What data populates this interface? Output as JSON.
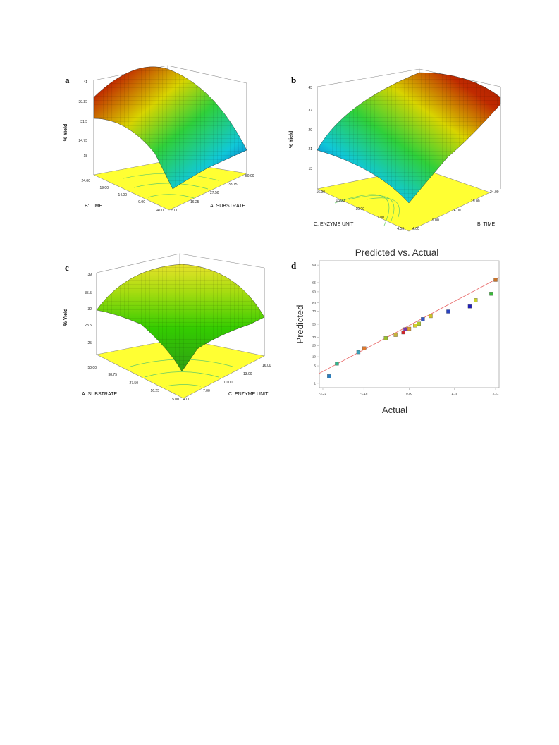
{
  "chart_data": [
    {
      "panel": "a",
      "type": "surface",
      "zlabel": "% Yield",
      "z_ticks": [
        "41",
        "38.25",
        "31.5",
        "24.75",
        "18"
      ],
      "xlabel": "A: SUBSTRATE",
      "x_ticks": [
        "5.00",
        "16.25",
        "27.50",
        "38.75",
        "50.00"
      ],
      "ylabel": "B: TIME",
      "y_ticks": [
        "4.00",
        "9.00",
        "14.00",
        "19.00",
        "24.00"
      ],
      "colors": {
        "high": "#b22a00",
        "mid": "#7ccd00",
        "low": "#0a3cc8",
        "floor": "#ffff33"
      }
    },
    {
      "panel": "b",
      "type": "surface",
      "zlabel": "% Yield",
      "z_ticks": [
        "45",
        "37",
        "29",
        "21",
        "13"
      ],
      "xlabel": "B: TIME",
      "x_ticks": [
        "4.00",
        "9.00",
        "14.00",
        "19.00",
        "24.00"
      ],
      "ylabel": "C: ENZYME UNIT",
      "y_ticks": [
        "4.00",
        "7.00",
        "10.00",
        "13.00",
        "16.00"
      ],
      "colors": {
        "high": "#a51c00",
        "mid": "#7ccd00",
        "low": "#0010c8",
        "floor": "#ffff33"
      }
    },
    {
      "panel": "c",
      "type": "surface",
      "zlabel": "% Yield",
      "z_ticks": [
        "39",
        "35.5",
        "32",
        "28.5",
        "25"
      ],
      "xlabel": "C: ENZYME UNIT",
      "x_ticks": [
        "4.00",
        "7.00",
        "10.00",
        "13.00",
        "16.00"
      ],
      "ylabel": "A: SUBSTRATE",
      "y_ticks": [
        "5.00",
        "16.25",
        "27.50",
        "38.75",
        "50.00"
      ],
      "colors": {
        "high": "#e8e22a",
        "mid": "#33cc00",
        "low": "#2f9f14",
        "floor": "#ffff33"
      }
    },
    {
      "panel": "d",
      "type": "scatter",
      "title": "Predicted vs. Actual",
      "xlabel": "Actual",
      "ylabel": "Predicted",
      "x_ticks": [
        "-2.21",
        "-1.16",
        "0.00",
        "1.16",
        "2.21"
      ],
      "y_ticks": [
        "1",
        "5",
        "10",
        "20",
        "30",
        "50",
        "70",
        "80",
        "90",
        "95",
        "99"
      ],
      "xlim": [
        -2.3,
        2.3
      ],
      "ylim": [
        -2.5,
        2.5
      ],
      "points": [
        {
          "x": -2.05,
          "y": -2.05,
          "color": "#2a7fc0"
        },
        {
          "x": -1.85,
          "y": -1.55,
          "color": "#2fb58c"
        },
        {
          "x": -1.3,
          "y": -1.1,
          "color": "#3aa0b8"
        },
        {
          "x": -1.15,
          "y": -0.95,
          "color": "#e07a2c"
        },
        {
          "x": -0.6,
          "y": -0.55,
          "color": "#9bbf2a"
        },
        {
          "x": -0.35,
          "y": -0.42,
          "color": "#c8b23c"
        },
        {
          "x": -0.15,
          "y": -0.32,
          "color": "#d0262a"
        },
        {
          "x": -0.1,
          "y": -0.2,
          "color": "#7a3aa8"
        },
        {
          "x": 0.0,
          "y": -0.18,
          "color": "#e0a030"
        },
        {
          "x": 0.15,
          "y": -0.05,
          "color": "#d9d22a"
        },
        {
          "x": 0.25,
          "y": 0.02,
          "color": "#b0cc2a"
        },
        {
          "x": 0.35,
          "y": 0.2,
          "color": "#3354c8"
        },
        {
          "x": 0.55,
          "y": 0.32,
          "color": "#d0c02a"
        },
        {
          "x": 1.0,
          "y": 0.5,
          "color": "#2a44c0"
        },
        {
          "x": 1.55,
          "y": 0.7,
          "color": "#2020b8"
        },
        {
          "x": 1.7,
          "y": 0.95,
          "color": "#c8d02a"
        },
        {
          "x": 2.1,
          "y": 1.2,
          "color": "#3ab83a"
        },
        {
          "x": 2.21,
          "y": 1.75,
          "color": "#c8742a"
        }
      ],
      "fit_line_color": "#e86464"
    }
  ]
}
